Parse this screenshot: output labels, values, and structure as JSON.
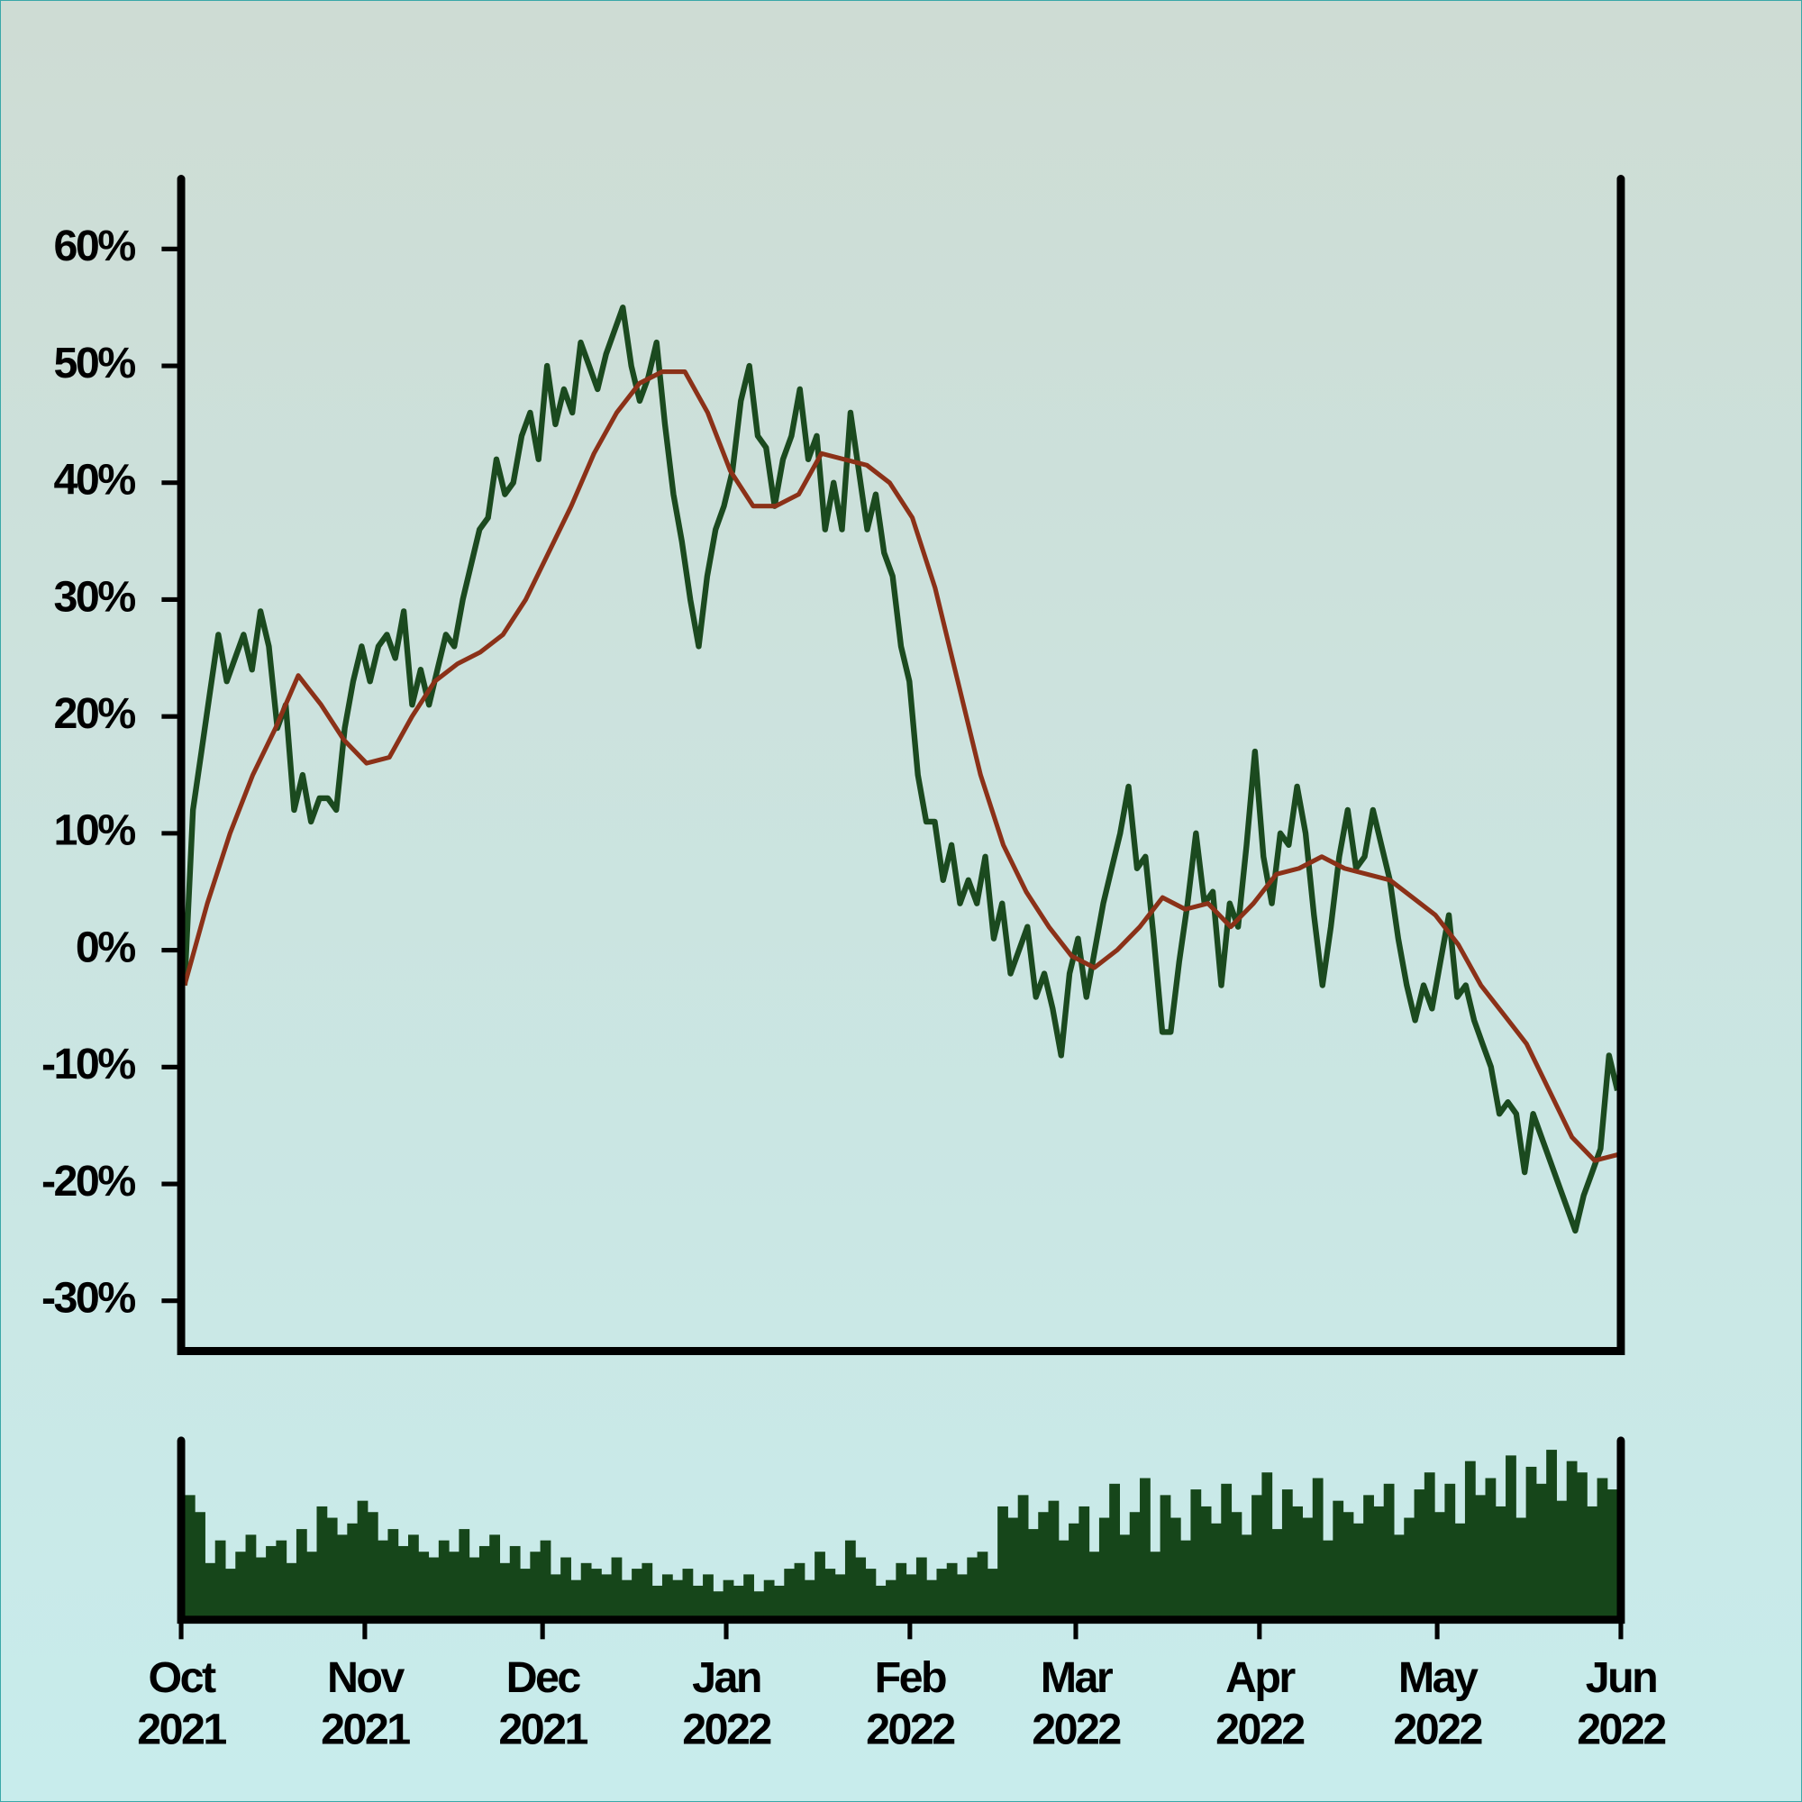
{
  "chart_data": [
    {
      "type": "line",
      "xlim": [
        "2021-10",
        "2022-06"
      ],
      "ylim": [
        -34.3,
        66
      ],
      "yticks": [
        {
          "value": 60,
          "label": "60%"
        },
        {
          "value": 50,
          "label": "50%"
        },
        {
          "value": 40,
          "label": "40%"
        },
        {
          "value": 30,
          "label": "30%"
        },
        {
          "value": 20,
          "label": "20%"
        },
        {
          "value": 10,
          "label": "10%"
        },
        {
          "value": 0,
          "label": "0%"
        },
        {
          "value": -10,
          "label": "-10%"
        },
        {
          "value": -20,
          "label": "-20%"
        },
        {
          "value": -30,
          "label": "-30%"
        }
      ],
      "series": [
        {
          "color": "#1b4a1f",
          "values": [
            -3,
            12,
            17,
            22,
            27,
            23,
            25,
            27,
            24,
            29,
            26,
            19,
            21,
            12,
            15,
            11,
            13,
            13,
            12,
            19,
            23,
            26,
            23,
            26,
            27,
            25,
            29,
            21,
            24,
            21,
            24,
            27,
            26,
            30,
            33,
            36,
            37,
            42,
            39,
            40,
            44,
            46,
            42,
            50,
            45,
            48,
            46,
            52,
            50,
            48,
            51,
            53,
            55,
            50,
            47,
            49,
            52,
            45,
            39,
            35,
            30,
            26,
            32,
            36,
            38,
            41,
            47,
            50,
            44,
            43,
            38,
            42,
            44,
            48,
            42,
            44,
            36,
            40,
            36,
            46,
            41,
            36,
            39,
            34,
            32,
            26,
            23,
            15,
            11,
            11,
            6,
            9,
            4,
            6,
            4,
            8,
            1,
            4,
            -2,
            0,
            2,
            -4,
            -2,
            -5,
            -9,
            -2,
            1,
            -4,
            0,
            4,
            7,
            10,
            14,
            7,
            8,
            1,
            -7,
            -7,
            -1,
            4,
            10,
            4,
            5,
            -3,
            4,
            2,
            9,
            17,
            8,
            4,
            10,
            9,
            14,
            10,
            3,
            -3,
            2,
            8,
            12,
            7,
            8,
            12,
            9,
            6,
            1,
            -3,
            -6,
            -3,
            -5,
            -1,
            3,
            -4,
            -3,
            -6,
            -8,
            -10,
            -14,
            -13,
            -14,
            -19,
            -14,
            -16,
            -18,
            -20,
            -22,
            -24,
            -21,
            -19,
            -17,
            -9,
            -12
          ]
        },
        {
          "color": "#8b3118",
          "values": [
            -3,
            4,
            10,
            15,
            19,
            23.5,
            21,
            18,
            16,
            16.5,
            20,
            23,
            24.5,
            25.5,
            27,
            30,
            34,
            38,
            42.5,
            46,
            48.5,
            49.5,
            49.5,
            46,
            41,
            38,
            38,
            39,
            42.5,
            42,
            41.5,
            40,
            37,
            31,
            23,
            15,
            9,
            5,
            2,
            -0.5,
            -1.5,
            0,
            2,
            4.5,
            3.5,
            4,
            2,
            4,
            6.5,
            7,
            8,
            7,
            6.5,
            6,
            4.5,
            3,
            0.5,
            -3,
            -5.5,
            -8,
            -12,
            -16,
            -18,
            -17.5
          ]
        }
      ]
    },
    {
      "type": "bar",
      "xlim": [
        "2021-10",
        "2022-06"
      ],
      "xticks": [
        {
          "value": "2021-10",
          "label": "Oct 2021"
        },
        {
          "value": "2021-11",
          "label": "Nov 2021"
        },
        {
          "value": "2021-12",
          "label": "Dec 2021"
        },
        {
          "value": "2022-01",
          "label": "Jan 2022"
        },
        {
          "value": "2022-02",
          "label": "Feb 2022"
        },
        {
          "value": "2022-03",
          "label": "Mar 2022"
        },
        {
          "value": "2022-04",
          "label": "Apr 2022"
        },
        {
          "value": "2022-05",
          "label": "May 2022"
        },
        {
          "value": "2022-06",
          "label": "Jun 2022"
        }
      ],
      "color": "#16461a",
      "values": [
        110,
        95,
        50,
        70,
        45,
        60,
        75,
        55,
        65,
        70,
        50,
        80,
        60,
        100,
        90,
        75,
        85,
        105,
        95,
        70,
        80,
        65,
        75,
        60,
        55,
        70,
        60,
        80,
        55,
        65,
        75,
        50,
        65,
        45,
        60,
        70,
        40,
        55,
        35,
        50,
        45,
        40,
        55,
        35,
        45,
        50,
        30,
        40,
        35,
        45,
        30,
        40,
        25,
        35,
        30,
        40,
        25,
        35,
        30,
        45,
        50,
        35,
        60,
        45,
        40,
        70,
        55,
        45,
        30,
        35,
        50,
        40,
        55,
        35,
        45,
        50,
        40,
        55,
        60,
        45,
        100,
        90,
        110,
        80,
        95,
        105,
        70,
        85,
        100,
        60,
        90,
        120,
        75,
        95,
        125,
        60,
        110,
        90,
        70,
        115,
        100,
        85,
        120,
        95,
        75,
        110,
        130,
        80,
        115,
        100,
        90,
        125,
        70,
        105,
        95,
        85,
        110,
        100,
        120,
        75,
        90,
        115,
        130,
        95,
        120,
        85,
        140,
        110,
        125,
        100,
        145,
        90,
        135,
        120,
        150,
        105,
        140,
        130,
        100,
        125,
        115
      ]
    }
  ]
}
